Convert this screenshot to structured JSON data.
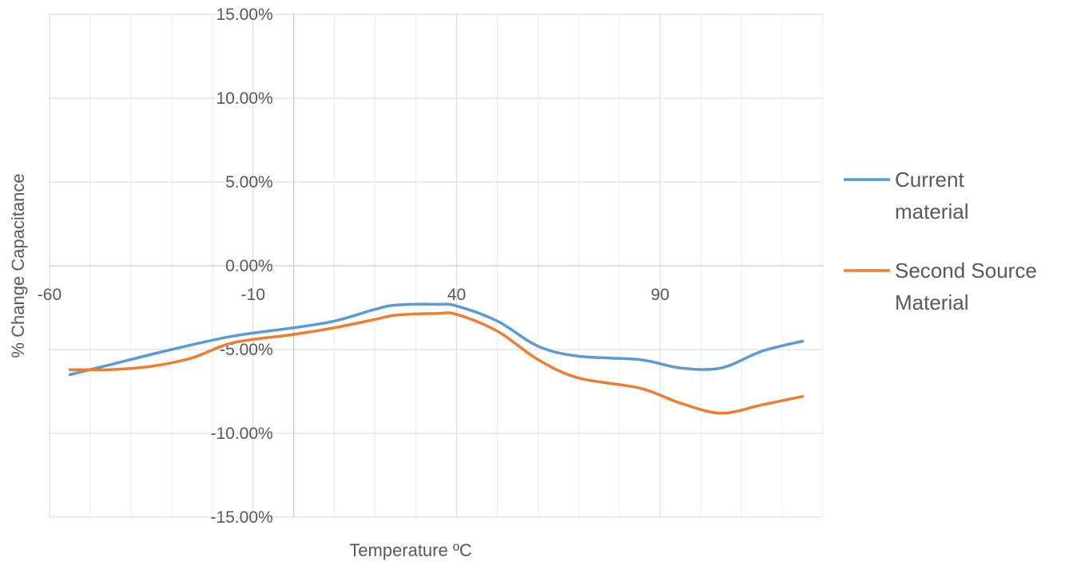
{
  "chart_data": {
    "type": "line",
    "xlabel": "Temperature ºC",
    "ylabel": "% Change Capacitance",
    "xlim": [
      -60,
      130
    ],
    "ylim": [
      -15,
      15
    ],
    "x_ticks": [
      {
        "value": -60,
        "label": "-60"
      },
      {
        "value": -10,
        "label": "-10"
      },
      {
        "value": 40,
        "label": "40"
      },
      {
        "value": 90,
        "label": "90"
      }
    ],
    "y_ticks": [
      {
        "value": 15,
        "label": "15.00%"
      },
      {
        "value": 10,
        "label": "10.00%"
      },
      {
        "value": 5,
        "label": "5.00%"
      },
      {
        "value": 0,
        "label": "0.00%"
      },
      {
        "value": -5,
        "label": "-5.00%"
      },
      {
        "value": -10,
        "label": "-10.00%"
      },
      {
        "value": -15,
        "label": "-15.00%"
      }
    ],
    "grid": {
      "major": true,
      "minor_vertical_step": 10
    },
    "legend_position": "right",
    "series": [
      {
        "name": "Current material",
        "color": "#5B9BD5",
        "points": [
          [
            -55,
            -6.5
          ],
          [
            -45,
            -5.9
          ],
          [
            -30,
            -5.0
          ],
          [
            -15,
            -4.2
          ],
          [
            0,
            -3.7
          ],
          [
            10,
            -3.3
          ],
          [
            20,
            -2.6
          ],
          [
            25,
            -2.35
          ],
          [
            35,
            -2.3
          ],
          [
            40,
            -2.4
          ],
          [
            50,
            -3.3
          ],
          [
            60,
            -4.8
          ],
          [
            70,
            -5.4
          ],
          [
            85,
            -5.6
          ],
          [
            95,
            -6.1
          ],
          [
            105,
            -6.1
          ],
          [
            115,
            -5.1
          ],
          [
            125,
            -4.5
          ]
        ]
      },
      {
        "name": "Second Source Material",
        "color": "#ED7D31",
        "points": [
          [
            -55,
            -6.2
          ],
          [
            -45,
            -6.2
          ],
          [
            -35,
            -6.0
          ],
          [
            -25,
            -5.5
          ],
          [
            -15,
            -4.6
          ],
          [
            0,
            -4.1
          ],
          [
            10,
            -3.7
          ],
          [
            20,
            -3.2
          ],
          [
            25,
            -2.95
          ],
          [
            35,
            -2.85
          ],
          [
            40,
            -2.9
          ],
          [
            50,
            -3.9
          ],
          [
            60,
            -5.6
          ],
          [
            70,
            -6.7
          ],
          [
            85,
            -7.3
          ],
          [
            95,
            -8.2
          ],
          [
            105,
            -8.8
          ],
          [
            115,
            -8.3
          ],
          [
            125,
            -7.8
          ]
        ]
      }
    ]
  }
}
